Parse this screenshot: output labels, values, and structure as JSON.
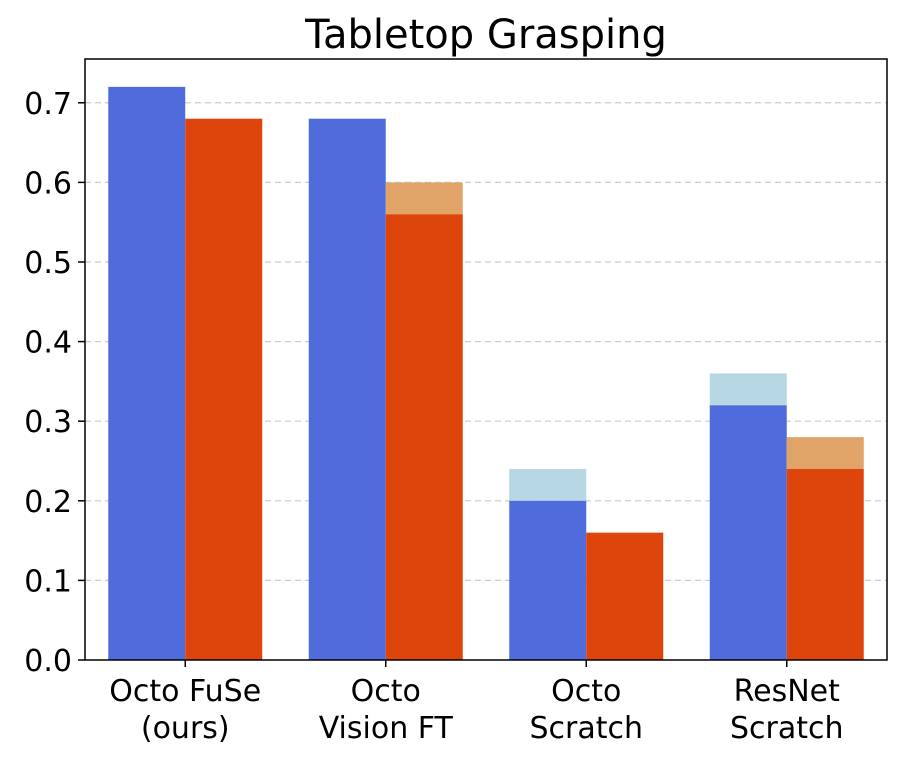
{
  "chart_data": {
    "type": "bar",
    "title": "Tabletop Grasping",
    "xlabel": "",
    "ylabel": "",
    "ylim": [
      0,
      0.755
    ],
    "yticks": [
      "0.0",
      "0.1",
      "0.2",
      "0.3",
      "0.4",
      "0.5",
      "0.6",
      "0.7"
    ],
    "grid": "y-dashed",
    "categories": [
      [
        "Octo FuSe",
        "(ours)"
      ],
      [
        "Octo",
        "Vision FT"
      ],
      [
        "Octo",
        "Scratch"
      ],
      [
        "ResNet",
        "Scratch"
      ]
    ],
    "series": [
      {
        "values": [
          0.72,
          0.68,
          0.2,
          0.32
        ],
        "upper_values": [
          0.72,
          0.68,
          0.24,
          0.36
        ],
        "color": "#4f6bdc",
        "upper_color": "#b8d7e5"
      },
      {
        "values": [
          0.68,
          0.56,
          0.16,
          0.24
        ],
        "upper_values": [
          0.68,
          0.6,
          0.16,
          0.28
        ],
        "color": "#dd450c",
        "upper_color": "#e0a468"
      }
    ]
  }
}
